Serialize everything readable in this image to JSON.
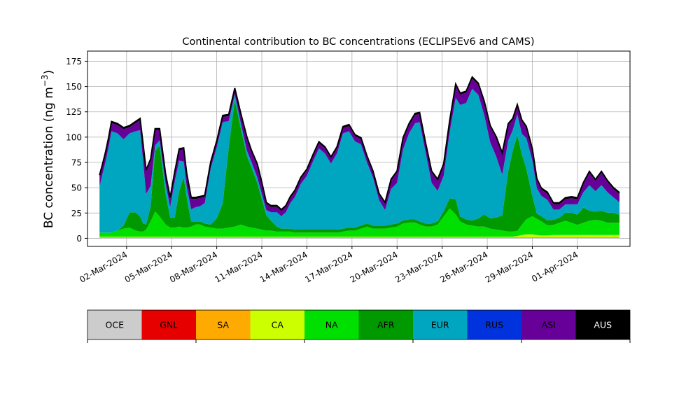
{
  "chart_data": {
    "type": "area",
    "stacked": true,
    "title": "Continental contribution to BC concentrations (ECLIPSEv6 and CAMS)",
    "ylabel": "BC concentration (ng m",
    "ylabel_sup": "−3",
    "ylabel_close": ")",
    "xlabel": "",
    "ylim": [
      -8,
      185
    ],
    "yticks": [
      0,
      25,
      50,
      75,
      100,
      125,
      150,
      175
    ],
    "xlim": [
      -1.6,
      34.5
    ],
    "grid": true,
    "xticks": [
      {
        "day": 1,
        "label": "02-Mar-2024"
      },
      {
        "day": 4,
        "label": "05-Mar-2024"
      },
      {
        "day": 7,
        "label": "08-Mar-2024"
      },
      {
        "day": 10,
        "label": "11-Mar-2024"
      },
      {
        "day": 13,
        "label": "14-Mar-2024"
      },
      {
        "day": 16,
        "label": "17-Mar-2024"
      },
      {
        "day": 19,
        "label": "20-Mar-2024"
      },
      {
        "day": 22,
        "label": "23-Mar-2024"
      },
      {
        "day": 25,
        "label": "26-Mar-2024"
      },
      {
        "day": 28,
        "label": "29-Mar-2024"
      },
      {
        "day": 31,
        "label": "01-Apr-2024"
      }
    ],
    "legend": [
      {
        "name": "OCE",
        "color": "#cccccc",
        "text_color": "#000000"
      },
      {
        "name": "GNL",
        "color": "#e60000",
        "text_color": "#000000"
      },
      {
        "name": "SA",
        "color": "#ffaa00",
        "text_color": "#000000"
      },
      {
        "name": "CA",
        "color": "#ccff00",
        "text_color": "#000000"
      },
      {
        "name": "NA",
        "color": "#00e000",
        "text_color": "#000000"
      },
      {
        "name": "AFR",
        "color": "#009900",
        "text_color": "#000000"
      },
      {
        "name": "EUR",
        "color": "#00a6bf",
        "text_color": "#000000"
      },
      {
        "name": "RUS",
        "color": "#0033dd",
        "text_color": "#000000"
      },
      {
        "name": "ASI",
        "color": "#660099",
        "text_color": "#000000"
      },
      {
        "name": "AUS",
        "color": "#000000",
        "text_color": "#ffffff"
      }
    ],
    "x": [
      -0.8,
      -0.6,
      -0.4,
      -0.2,
      0.0,
      0.4,
      0.8,
      1.2,
      1.6,
      1.9,
      2.1,
      2.3,
      2.6,
      2.9,
      3.2,
      3.6,
      3.9,
      4.2,
      4.5,
      4.8,
      5.0,
      5.3,
      5.6,
      5.9,
      6.2,
      6.6,
      7.0,
      7.4,
      7.8,
      8.2,
      8.6,
      9.0,
      9.3,
      9.7,
      10.0,
      10.3,
      10.6,
      11.0,
      11.3,
      11.6,
      11.9,
      12.2,
      12.6,
      13.0,
      13.4,
      13.8,
      14.2,
      14.6,
      15.0,
      15.4,
      15.8,
      16.2,
      16.6,
      17.0,
      17.4,
      17.8,
      18.2,
      18.6,
      19.0,
      19.4,
      19.8,
      20.2,
      20.5,
      20.9,
      21.3,
      21.7,
      22.1,
      22.5,
      22.9,
      23.2,
      23.6,
      24.0,
      24.4,
      24.8,
      25.2,
      25.6,
      26.0,
      26.4,
      26.7,
      27.0,
      27.3,
      27.6,
      28.0,
      28.3,
      28.6,
      29.0,
      29.4,
      29.8,
      30.2,
      30.6,
      31.0,
      31.4,
      31.8,
      32.2,
      32.6,
      33.0,
      33.4,
      33.8
    ],
    "series": [
      {
        "name": "OCE",
        "values": [
          0.3,
          0.3,
          0.3,
          0.3,
          0.3,
          0.3,
          0.3,
          0.3,
          0.3,
          0.3,
          0.3,
          0.3,
          0.3,
          0.3,
          0.3,
          0.3,
          0.3,
          0.3,
          0.3,
          0.3,
          0.3,
          0.3,
          0.3,
          0.3,
          0.3,
          0.3,
          0.3,
          0.3,
          0.3,
          0.3,
          0.3,
          0.3,
          0.3,
          0.3,
          0.3,
          0.3,
          0.3,
          0.3,
          0.3,
          0.3,
          0.3,
          0.3,
          0.3,
          0.3,
          0.3,
          0.3,
          0.3,
          0.3,
          0.3,
          0.3,
          0.3,
          0.3,
          0.3,
          0.3,
          0.3,
          0.3,
          0.3,
          0.3,
          0.3,
          0.3,
          0.3,
          0.3,
          0.3,
          0.3,
          0.3,
          0.3,
          0.3,
          0.3,
          0.3,
          0.3,
          0.3,
          0.3,
          0.3,
          0.3,
          0.3,
          0.3,
          0.3,
          0.3,
          0.3,
          0.3,
          0.3,
          0.3,
          0.3,
          0.3,
          0.3,
          0.3,
          0.3,
          0.3,
          0.3,
          0.3,
          0.3,
          0.3,
          0.3,
          0.3,
          0.3,
          0.3,
          0.3,
          0.3
        ]
      },
      {
        "name": "GNL",
        "values": [
          0.3,
          0.3,
          0.3,
          0.3,
          0.3,
          0.3,
          0.3,
          0.3,
          0.3,
          0.3,
          0.3,
          0.3,
          0.3,
          0.3,
          0.3,
          0.3,
          0.3,
          0.3,
          0.3,
          0.3,
          0.3,
          0.3,
          0.3,
          0.3,
          0.3,
          0.3,
          0.3,
          0.3,
          0.3,
          0.3,
          0.3,
          0.3,
          0.3,
          0.3,
          0.3,
          0.3,
          0.3,
          0.3,
          0.3,
          0.3,
          0.3,
          0.3,
          0.3,
          0.3,
          0.3,
          0.3,
          0.3,
          0.3,
          0.3,
          0.3,
          0.3,
          0.3,
          0.3,
          0.3,
          0.3,
          0.3,
          0.3,
          0.3,
          0.3,
          0.3,
          0.3,
          0.3,
          0.3,
          0.3,
          0.3,
          0.3,
          0.3,
          0.3,
          0.3,
          0.3,
          0.3,
          0.3,
          0.3,
          0.3,
          0.3,
          0.3,
          0.3,
          0.3,
          0.3,
          0.3,
          0.3,
          0.3,
          0.3,
          0.3,
          0.3,
          0.3,
          0.3,
          0.3,
          0.3,
          0.3,
          0.3,
          0.3,
          0.3,
          0.3,
          0.3,
          0.3,
          0.3,
          0.3
        ]
      },
      {
        "name": "SA",
        "values": [
          0.2,
          0.2,
          0.2,
          0.2,
          0.2,
          0.2,
          0.2,
          0.2,
          0.2,
          0.2,
          0.2,
          0.2,
          0.2,
          0.2,
          0.2,
          0.2,
          0.2,
          0.2,
          0.2,
          0.2,
          0.2,
          0.2,
          0.2,
          0.2,
          0.2,
          0.2,
          0.2,
          0.2,
          0.2,
          0.2,
          0.2,
          0.2,
          0.2,
          0.2,
          0.2,
          0.2,
          0.2,
          0.2,
          0.2,
          0.2,
          0.2,
          0.2,
          0.2,
          0.2,
          0.2,
          0.2,
          0.2,
          0.2,
          0.2,
          0.2,
          0.2,
          0.2,
          0.2,
          0.2,
          0.2,
          0.2,
          0.2,
          0.2,
          0.2,
          0.2,
          0.2,
          0.2,
          0.2,
          0.2,
          0.2,
          0.2,
          0.2,
          0.2,
          0.2,
          0.2,
          0.2,
          0.2,
          0.2,
          0.2,
          0.2,
          0.2,
          0.2,
          0.2,
          0.2,
          0.2,
          0.2,
          0.2,
          0.2,
          0.2,
          0.2,
          0.2,
          0.2,
          0.2,
          0.2,
          0.2,
          0.2,
          0.2,
          0.2,
          0.2,
          0.2,
          0.2,
          0.2,
          0.2
        ]
      },
      {
        "name": "CA",
        "values": [
          0.8,
          0.8,
          0.8,
          0.8,
          0.8,
          0.8,
          0.8,
          0.8,
          0.8,
          0.8,
          0.8,
          0.8,
          0.8,
          0.8,
          0.8,
          0.8,
          0.8,
          0.8,
          0.8,
          0.8,
          0.8,
          0.8,
          0.8,
          0.8,
          0.8,
          0.8,
          0.8,
          0.8,
          0.8,
          0.8,
          0.8,
          0.8,
          0.8,
          0.8,
          0.8,
          0.8,
          0.8,
          0.8,
          0.8,
          0.8,
          0.8,
          0.8,
          0.8,
          0.8,
          0.8,
          0.8,
          0.8,
          0.8,
          0.8,
          0.8,
          0.8,
          0.8,
          0.8,
          0.8,
          0.8,
          0.8,
          0.8,
          0.8,
          0.8,
          0.8,
          0.8,
          0.8,
          0.8,
          0.8,
          0.8,
          0.8,
          0.8,
          0.8,
          0.8,
          0.8,
          0.8,
          0.8,
          0.8,
          0.8,
          0.8,
          0.8,
          0.8,
          0.8,
          0.8,
          1.5,
          2.5,
          3.0,
          3.0,
          2.5,
          2.0,
          2.0,
          2.5,
          2.5,
          2.5,
          2.5,
          2.5,
          2.5,
          2.5,
          2.5,
          2.5,
          2.5,
          2.5,
          2.5
        ]
      },
      {
        "name": "NA",
        "values": [
          4,
          4,
          4,
          4,
          4,
          6,
          8,
          9,
          6,
          5,
          5,
          7,
          15,
          25,
          20,
          12,
          9,
          9,
          10,
          9,
          9,
          10,
          12,
          12,
          10,
          9,
          8,
          8,
          9,
          10,
          12,
          10,
          9,
          8,
          7,
          6,
          6,
          5,
          5,
          5,
          5,
          4,
          4,
          4,
          4,
          4,
          4,
          4,
          4,
          5,
          6,
          6,
          8,
          10,
          8,
          8,
          8,
          9,
          10,
          13,
          14,
          14,
          12,
          10,
          10,
          12,
          20,
          28,
          22,
          15,
          12,
          11,
          10,
          10,
          8,
          7,
          6,
          5,
          5,
          5,
          10,
          15,
          18,
          16,
          14,
          10,
          10,
          12,
          14,
          12,
          10,
          12,
          14,
          15,
          14,
          12,
          12,
          12
        ]
      },
      {
        "name": "AFR",
        "values": [
          0,
          0,
          0,
          0,
          0,
          0,
          3,
          15,
          18,
          15,
          8,
          5,
          15,
          60,
          70,
          30,
          10,
          10,
          35,
          50,
          30,
          5,
          3,
          3,
          3,
          3,
          10,
          25,
          80,
          125,
          95,
          70,
          60,
          45,
          30,
          15,
          10,
          5,
          3,
          3,
          3,
          3,
          3,
          3,
          3,
          3,
          3,
          3,
          3,
          3,
          3,
          3,
          3,
          3,
          3,
          3,
          3,
          3,
          3,
          3,
          3,
          3,
          3,
          3,
          3,
          3,
          5,
          10,
          15,
          5,
          5,
          5,
          8,
          12,
          10,
          12,
          15,
          60,
          80,
          95,
          70,
          50,
          20,
          5,
          5,
          5,
          5,
          5,
          8,
          10,
          10,
          15,
          10,
          8,
          10,
          10,
          10,
          8
        ]
      },
      {
        "name": "EUR",
        "values": [
          45,
          58,
          70,
          84,
          100,
          96,
          85,
          78,
          80,
          85,
          62,
          30,
          20,
          5,
          5,
          10,
          10,
          35,
          30,
          15,
          10,
          12,
          14,
          15,
          20,
          55,
          70,
          80,
          25,
          5,
          5,
          5,
          5,
          5,
          5,
          5,
          8,
          14,
          12,
          16,
          25,
          32,
          45,
          53,
          67,
          80,
          75,
          65,
          75,
          94,
          95,
          85,
          80,
          60,
          47,
          25,
          15,
          35,
          40,
          70,
          85,
          95,
          98,
          70,
          40,
          30,
          35,
          65,
          100,
          110,
          115,
          130,
          122,
          98,
          75,
          60,
          40,
          30,
          20,
          20,
          20,
          30,
          35,
          25,
          20,
          20,
          10,
          8,
          8,
          8,
          10,
          15,
          25,
          20,
          25,
          20,
          15,
          12
        ]
      },
      {
        "name": "RUS",
        "values": [
          0.3,
          0.3,
          0.3,
          0.3,
          0.3,
          0.3,
          0.3,
          0.3,
          0.3,
          0.3,
          0.3,
          0.3,
          0.3,
          0.3,
          0.3,
          0.3,
          0.3,
          0.3,
          0.3,
          0.3,
          0.3,
          0.3,
          0.3,
          0.3,
          0.3,
          0.3,
          0.3,
          0.3,
          0.3,
          0.3,
          0.3,
          0.3,
          0.3,
          0.3,
          0.3,
          0.3,
          0.3,
          0.3,
          0.3,
          0.3,
          0.3,
          0.3,
          0.3,
          0.3,
          0.3,
          0.3,
          0.3,
          0.3,
          0.3,
          0.3,
          0.3,
          0.3,
          0.3,
          0.3,
          0.3,
          0.3,
          0.3,
          0.3,
          0.3,
          0.3,
          0.3,
          0.3,
          0.3,
          0.3,
          0.3,
          0.3,
          0.3,
          0.3,
          0.3,
          0.3,
          0.3,
          0.3,
          0.3,
          0.3,
          0.3,
          0.3,
          0.3,
          0.3,
          0.3,
          0.3,
          0.3,
          0.3,
          0.3,
          0.3,
          0.3,
          0.3,
          0.3,
          0.3,
          0.3,
          0.3,
          0.3,
          0.3,
          0.3,
          0.3,
          0.3,
          0.3,
          0.3,
          0.3
        ]
      },
      {
        "name": "ASI",
        "values": [
          10,
          8,
          8,
          8,
          8,
          8,
          10,
          6,
          8,
          10,
          15,
          22,
          25,
          15,
          10,
          8,
          8,
          8,
          10,
          12,
          12,
          10,
          8,
          8,
          6,
          5,
          5,
          5,
          5,
          5,
          8,
          12,
          10,
          12,
          10,
          6,
          5,
          5,
          5,
          5,
          5,
          5,
          5,
          5,
          5,
          5,
          5,
          5,
          5,
          5,
          5,
          5,
          5,
          5,
          5,
          5,
          6,
          8,
          10,
          10,
          8,
          8,
          8,
          8,
          10,
          10,
          10,
          10,
          12,
          10,
          10,
          10,
          10,
          12,
          15,
          18,
          20,
          15,
          10,
          8,
          12,
          10,
          10,
          8,
          6,
          6,
          5,
          5,
          5,
          6,
          5,
          8,
          12,
          10,
          12,
          10,
          8,
          8
        ]
      },
      {
        "name": "AUS",
        "values": [
          1.5,
          1.5,
          1.5,
          1.5,
          1.5,
          1.5,
          1.5,
          1.5,
          1.5,
          1.5,
          1.5,
          1.5,
          1.5,
          1.5,
          1.5,
          1.5,
          1.5,
          1.5,
          1.5,
          1.5,
          1.5,
          1.5,
          1.5,
          1.5,
          1.5,
          1.5,
          1.5,
          1.5,
          1.5,
          1.5,
          1.5,
          1.5,
          1.5,
          1.5,
          1.5,
          1.5,
          1.5,
          1.5,
          1.5,
          1.5,
          1.5,
          1.5,
          1.5,
          1.5,
          1.5,
          1.5,
          1.5,
          1.5,
          1.5,
          1.5,
          1.5,
          1.5,
          1.5,
          1.5,
          1.5,
          1.5,
          1.5,
          1.5,
          1.5,
          1.5,
          1.5,
          1.5,
          1.5,
          1.5,
          1.5,
          1.5,
          1.5,
          1.5,
          1.5,
          1.5,
          1.5,
          1.5,
          1.5,
          1.5,
          1.5,
          1.5,
          1.5,
          1.5,
          1.5,
          1.5,
          1.5,
          1.5,
          1.5,
          1.5,
          1.5,
          1.5,
          1.5,
          1.5,
          1.5,
          1.5,
          1.5,
          1.5,
          1.5,
          1.5,
          1.5,
          1.5,
          1.5,
          1.5
        ]
      }
    ]
  }
}
